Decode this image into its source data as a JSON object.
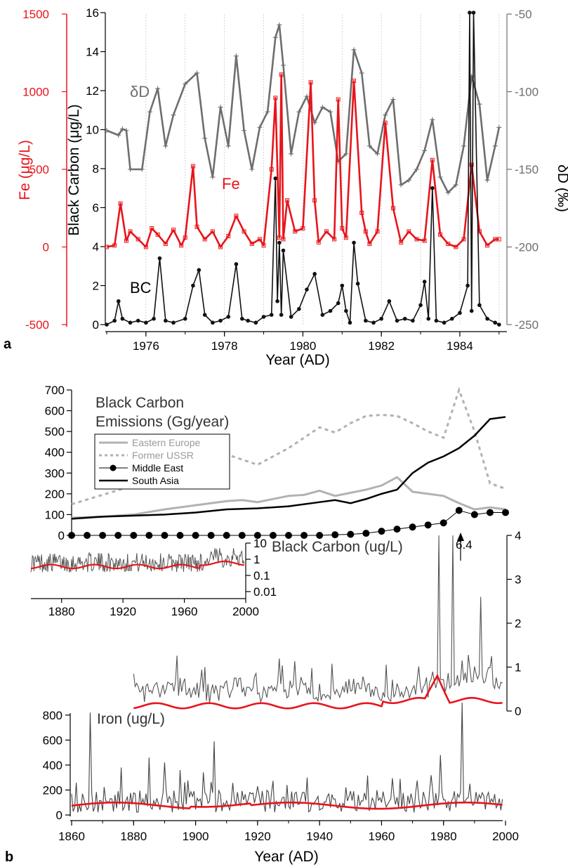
{
  "chart_data": [
    {
      "panel": "a",
      "type": "line",
      "xlabel": "Year (AD)",
      "xlim": [
        1975.0,
        1985.2
      ],
      "x_ticks": [
        "1976",
        "1978",
        "1980",
        "1982",
        "1984"
      ],
      "axes": {
        "left_outer": {
          "label": "Fe (μg/L)",
          "ylim": [
            -500,
            1500
          ],
          "ticks": [
            "1500",
            "1000",
            "500",
            "0",
            "-500"
          ],
          "color": "#e8141b"
        },
        "left_inner": {
          "label": "Black Carbon (μg/L)",
          "ylim": [
            0,
            16
          ],
          "ticks": [
            "16",
            "14",
            "12",
            "10",
            "8",
            "6",
            "4",
            "2",
            "0"
          ]
        },
        "right": {
          "label": "δD (‰)",
          "ylim": [
            -250,
            -50
          ],
          "ticks": [
            "-50",
            "-100",
            "-150",
            "-200",
            "-250"
          ]
        }
      },
      "series": [
        {
          "name": "δD",
          "color": "#6e6e6e",
          "axis": "right",
          "x": [
            1975.0,
            1975.3,
            1975.4,
            1975.5,
            1975.6,
            1975.9,
            1976.1,
            1976.3,
            1976.5,
            1976.7,
            1977.0,
            1977.3,
            1977.5,
            1977.7,
            1977.9,
            1978.1,
            1978.3,
            1978.5,
            1978.7,
            1978.9,
            1979.1,
            1979.3,
            1979.4,
            1979.5,
            1979.7,
            1979.9,
            1980.1,
            1980.3,
            1980.5,
            1980.7,
            1980.9,
            1981.1,
            1981.3,
            1981.5,
            1981.7,
            1981.9,
            1982.1,
            1982.3,
            1982.5,
            1982.7,
            1982.9,
            1983.1,
            1983.3,
            1983.5,
            1983.7,
            1983.9,
            1984.1,
            1984.3,
            1984.5,
            1984.7,
            1984.9,
            1985.0
          ],
          "y": [
            -125,
            -128,
            -124,
            -125,
            -150,
            -150,
            -113,
            -98,
            -135,
            -115,
            -95,
            -88,
            -130,
            -155,
            -110,
            -135,
            -77,
            -125,
            -150,
            -123,
            -113,
            -65,
            -57,
            -83,
            -140,
            -113,
            -103,
            -120,
            -110,
            -113,
            -145,
            -140,
            -73,
            -88,
            -135,
            -140,
            -115,
            -105,
            -160,
            -157,
            -150,
            -138,
            -118,
            -155,
            -165,
            -160,
            -135,
            -90,
            -108,
            -157,
            -135,
            -123
          ]
        },
        {
          "name": "Fe",
          "color": "#e8141b",
          "axis": "left_outer",
          "x": [
            1975.0,
            1975.2,
            1975.35,
            1975.5,
            1975.6,
            1975.8,
            1976.0,
            1976.15,
            1976.3,
            1976.5,
            1976.7,
            1976.9,
            1977.0,
            1977.2,
            1977.3,
            1977.5,
            1977.7,
            1977.9,
            1978.1,
            1978.3,
            1978.5,
            1978.7,
            1978.9,
            1979.0,
            1979.2,
            1979.3,
            1979.4,
            1979.45,
            1979.5,
            1979.6,
            1979.8,
            1980.0,
            1980.2,
            1980.3,
            1980.4,
            1980.6,
            1980.8,
            1980.9,
            1981.0,
            1981.1,
            1981.3,
            1981.5,
            1981.6,
            1981.7,
            1981.9,
            1982.1,
            1982.3,
            1982.5,
            1982.7,
            1982.9,
            1983.1,
            1983.3,
            1983.5,
            1983.7,
            1983.9,
            1984.1,
            1984.3,
            1984.5,
            1984.7,
            1984.9,
            1985.0
          ],
          "y": [
            0,
            10,
            280,
            40,
            100,
            50,
            0,
            120,
            80,
            20,
            110,
            10,
            60,
            520,
            130,
            50,
            100,
            0,
            70,
            200,
            100,
            20,
            50,
            10,
            500,
            960,
            60,
            1110,
            50,
            300,
            100,
            120,
            1060,
            300,
            30,
            100,
            50,
            950,
            120,
            60,
            1070,
            220,
            100,
            20,
            100,
            800,
            250,
            30,
            100,
            50,
            40,
            560,
            80,
            20,
            0,
            50,
            530,
            100,
            10,
            50,
            50
          ]
        },
        {
          "name": "BC",
          "color": "#111111",
          "axis": "left_inner",
          "x": [
            1975.0,
            1975.2,
            1975.3,
            1975.4,
            1975.6,
            1975.8,
            1976.0,
            1976.2,
            1976.35,
            1976.5,
            1976.7,
            1977.0,
            1977.2,
            1977.35,
            1977.5,
            1977.7,
            1977.9,
            1978.1,
            1978.3,
            1978.45,
            1978.6,
            1978.8,
            1979.0,
            1979.2,
            1979.3,
            1979.35,
            1979.4,
            1979.45,
            1979.5,
            1979.7,
            1979.9,
            1980.1,
            1980.3,
            1980.5,
            1980.7,
            1980.9,
            1981.0,
            1981.1,
            1981.2,
            1981.3,
            1981.4,
            1981.6,
            1981.8,
            1982.0,
            1982.2,
            1982.4,
            1982.6,
            1982.8,
            1983.0,
            1983.1,
            1983.2,
            1983.3,
            1983.4,
            1983.6,
            1983.8,
            1984.0,
            1984.2,
            1984.25,
            1984.3,
            1984.35,
            1984.5,
            1984.7,
            1984.9,
            1985.0
          ],
          "y": [
            0,
            0.2,
            1.2,
            0.3,
            0.1,
            0.2,
            0.1,
            0.3,
            3.4,
            0.2,
            0.1,
            0.3,
            2.0,
            2.8,
            0.5,
            0.1,
            0.2,
            0.4,
            3.1,
            0.3,
            0.2,
            0.1,
            0.4,
            0.5,
            7.5,
            1.2,
            4.2,
            0.5,
            3.8,
            0.4,
            0.8,
            1.8,
            2.6,
            0.5,
            0.7,
            1.1,
            2.0,
            0.7,
            0.1,
            4.2,
            2.1,
            0.2,
            0.1,
            0.3,
            1.2,
            0.2,
            0.3,
            0.2,
            1.0,
            2.2,
            0.3,
            7.0,
            0.2,
            0.1,
            0.3,
            0.6,
            2.0,
            17,
            0.7,
            17,
            1.0,
            0.3,
            0.1,
            0
          ]
        }
      ],
      "series_labels": {
        "dD": "δD",
        "fe": "Fe",
        "bc": "BC"
      },
      "panel_label": "a"
    },
    {
      "panel": "b",
      "type": "line",
      "xlabel": "Year (AD)",
      "xlim": [
        1860,
        2000
      ],
      "x_ticks": [
        "1860",
        "1880",
        "1900",
        "1920",
        "1940",
        "1960",
        "1980",
        "2000"
      ],
      "panel_label": "b",
      "emissions": {
        "title_lines": [
          "Black Carbon",
          "Emissions (Gg/year)"
        ],
        "ylim": [
          0,
          700
        ],
        "y_ticks": [
          "700",
          "600",
          "500",
          "400",
          "300",
          "200",
          "100",
          "0"
        ],
        "legend": [
          "Eastern Europe",
          "Former USSR",
          "Middle East",
          "South Asia"
        ],
        "series": [
          {
            "name": "Eastern Europe",
            "color": "#b2b2b2",
            "style": "solid",
            "x": [
              1860,
              1870,
              1880,
              1890,
              1900,
              1910,
              1915,
              1920,
              1930,
              1935,
              1940,
              1945,
              1950,
              1955,
              1960,
              1965,
              1970,
              1975,
              1980,
              1985,
              1990,
              1995,
              2000
            ],
            "y": [
              85,
              90,
              100,
              125,
              145,
              165,
              170,
              160,
              190,
              195,
              215,
              190,
              205,
              220,
              240,
              280,
              210,
              200,
              190,
              155,
              125,
              135,
              125
            ]
          },
          {
            "name": "Former USSR",
            "color": "#b2b2b2",
            "style": "dashed",
            "x": [
              1860,
              1870,
              1880,
              1890,
              1900,
              1910,
              1920,
              1930,
              1940,
              1945,
              1950,
              1955,
              1960,
              1965,
              1970,
              1975,
              1980,
              1985,
              1990,
              1995,
              2000
            ],
            "y": [
              150,
              195,
              240,
              300,
              360,
              390,
              340,
              420,
              520,
              495,
              540,
              575,
              580,
              575,
              540,
              500,
              470,
              700,
              500,
              250,
              225
            ]
          },
          {
            "name": "Middle East",
            "color": "#000000",
            "style": "markers",
            "x": [
              1860,
              1865,
              1870,
              1875,
              1880,
              1885,
              1890,
              1895,
              1900,
              1905,
              1910,
              1915,
              1920,
              1925,
              1930,
              1935,
              1940,
              1945,
              1950,
              1955,
              1960,
              1965,
              1970,
              1975,
              1980,
              1985,
              1990,
              1995,
              2000
            ],
            "y": [
              0,
              0,
              0,
              0,
              0,
              0,
              0,
              0,
              0,
              0,
              0,
              0,
              0,
              0,
              0,
              0,
              0,
              3,
              5,
              10,
              20,
              30,
              40,
              50,
              60,
              120,
              100,
              110,
              110
            ]
          },
          {
            "name": "South Asia",
            "color": "#000000",
            "style": "solid",
            "x": [
              1860,
              1870,
              1880,
              1890,
              1900,
              1910,
              1920,
              1930,
              1940,
              1945,
              1950,
              1955,
              1960,
              1965,
              1970,
              1975,
              1980,
              1985,
              1990,
              1995,
              2000
            ],
            "y": [
              80,
              90,
              95,
              100,
              110,
              125,
              130,
              140,
              160,
              170,
              155,
              175,
              200,
              220,
              300,
              350,
              380,
              420,
              480,
              560,
              570
            ]
          }
        ]
      },
      "bc_main": {
        "title": "Black Carbon (ug/L)",
        "ylim": [
          0,
          4
        ],
        "y_ticks": [
          "4",
          "3",
          "2",
          "1",
          "0"
        ],
        "annotation": "6.4"
      },
      "bc_inset": {
        "ylim_log": [
          0.01,
          10
        ],
        "y_ticks": [
          "10",
          "1",
          "0.1",
          "0.01"
        ],
        "x_ticks": [
          "1880",
          "1920",
          "1960",
          "2000"
        ],
        "xlim": [
          1860,
          2000
        ]
      },
      "iron": {
        "title": "Iron (ug/L)",
        "ylim": [
          0,
          900
        ],
        "y_ticks": [
          "800",
          "600",
          "400",
          "200",
          "0"
        ]
      }
    }
  ]
}
